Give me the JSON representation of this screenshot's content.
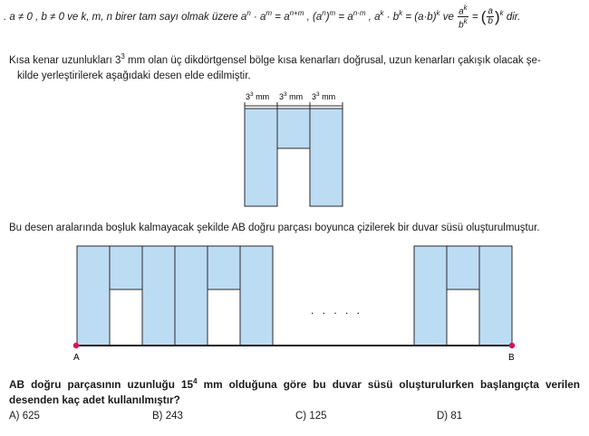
{
  "rule": {
    "bullet": ".",
    "text": "a ≠ 0 , b ≠ 0 ve k, m, n birer tam sayı olmak üzere",
    "f1": "a",
    "f1_exp": "n",
    "dot1": " · ",
    "f2": "a",
    "f2_exp": "m",
    "eq1": " = ",
    "f3": "a",
    "f3_exp": "n+m",
    "sep1": ", ",
    "f4": "(a",
    "f4_exp1": "n",
    "f4_close": ")",
    "f4_exp2": "m",
    "eq2": " = ",
    "f5": "a",
    "f5_exp": "n·m",
    "sep2": ", ",
    "f6": "a",
    "f6_exp": "k",
    "dot2": " · ",
    "f7": "b",
    "f7_exp": "k",
    "eq3": " = ",
    "f8": "(a·b)",
    "f8_exp": "k",
    "ve": " ve ",
    "frac1_num": "a",
    "frac1_num_exp": "k",
    "frac1_den": "b",
    "frac1_den_exp": "k",
    "eq4": " = ",
    "lparen": "(",
    "frac2_num": "a",
    "frac2_den": "b",
    "rparen": ")",
    "paren_exp": "k",
    "dir": " dir."
  },
  "para1": {
    "line1_a": "Kısa kenar uzunlukları 3",
    "line1_exp": "3",
    "line1_b": " mm olan üç dikdörtgensel bölge kısa kenarları doğrusal, uzun kenarları çakışık olacak şe-",
    "line2": "kilde yerleştirilerek aşağıdaki desen elde edilmiştir."
  },
  "motif": {
    "dim_labels": [
      {
        "base": "3",
        "exp": "3",
        "unit": " mm"
      },
      {
        "base": "3",
        "exp": "3",
        "unit": " mm"
      },
      {
        "base": "3",
        "exp": "3",
        "unit": " mm"
      }
    ]
  },
  "para2": "Bu desen aralarında boşluk kalmayacak şekilde AB doğru parçası boyunca çizilerek bir duvar süsü oluşturulmuştur.",
  "wall": {
    "dots": ". . . . .",
    "point_a": "A",
    "point_b": "B"
  },
  "question": {
    "part1": "AB doğru parçasının uzunluğu 15",
    "exp": "4",
    "part2": " mm olduğuna göre bu duvar süsü oluşturulurken başlangıçta verilen desenden kaç adet kullanılmıştır?"
  },
  "options": [
    {
      "label": "A) 625"
    },
    {
      "label": "B) 243"
    },
    {
      "label": "C) 125"
    },
    {
      "label": "D) 81"
    }
  ],
  "colors": {
    "fill": "#bcdcf4",
    "stroke": "#2a2a2a",
    "endpoint": "#d4145a"
  }
}
